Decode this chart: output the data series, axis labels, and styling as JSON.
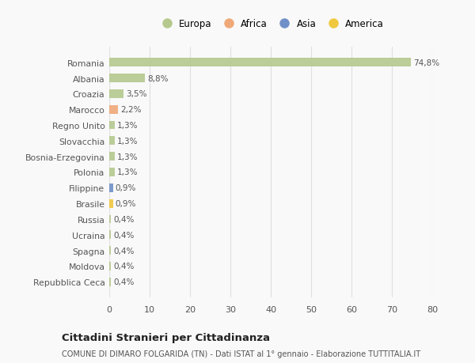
{
  "countries": [
    "Romania",
    "Albania",
    "Croazia",
    "Marocco",
    "Regno Unito",
    "Slovacchia",
    "Bosnia-Erzegovina",
    "Polonia",
    "Filippine",
    "Brasile",
    "Russia",
    "Ucraina",
    "Spagna",
    "Moldova",
    "Repubblica Ceca"
  ],
  "values": [
    74.8,
    8.8,
    3.5,
    2.2,
    1.3,
    1.3,
    1.3,
    1.3,
    0.9,
    0.9,
    0.4,
    0.4,
    0.4,
    0.4,
    0.4
  ],
  "labels": [
    "74,8%",
    "8,8%",
    "3,5%",
    "2,2%",
    "1,3%",
    "1,3%",
    "1,3%",
    "1,3%",
    "0,9%",
    "0,9%",
    "0,4%",
    "0,4%",
    "0,4%",
    "0,4%",
    "0,4%"
  ],
  "continents": [
    "Europa",
    "Europa",
    "Europa",
    "Africa",
    "Europa",
    "Europa",
    "Europa",
    "Europa",
    "Asia",
    "America",
    "Europa",
    "Europa",
    "Europa",
    "Europa",
    "Europa"
  ],
  "continent_colors": {
    "Europa": "#b5c98e",
    "Africa": "#f0a878",
    "Asia": "#7090c8",
    "America": "#f0c840"
  },
  "bar_colors": [
    "#b5c98e",
    "#b5c98e",
    "#b5c98e",
    "#f0a878",
    "#b5c98e",
    "#b5c98e",
    "#b5c98e",
    "#b5c98e",
    "#7090c8",
    "#f0c840",
    "#b5c98e",
    "#b5c98e",
    "#b5c98e",
    "#b5c98e",
    "#b5c98e"
  ],
  "legend_order": [
    "Europa",
    "Africa",
    "Asia",
    "America"
  ],
  "title": "Cittadini Stranieri per Cittadinanza",
  "subtitle": "COMUNE DI DIMARO FOLGARIDA (TN) - Dati ISTAT al 1° gennaio - Elaborazione TUTTITALIA.IT",
  "xlim": [
    0,
    80
  ],
  "xticks": [
    0,
    10,
    20,
    30,
    40,
    50,
    60,
    70,
    80
  ],
  "background_color": "#f9f9f9",
  "grid_color": "#e0e0e0"
}
